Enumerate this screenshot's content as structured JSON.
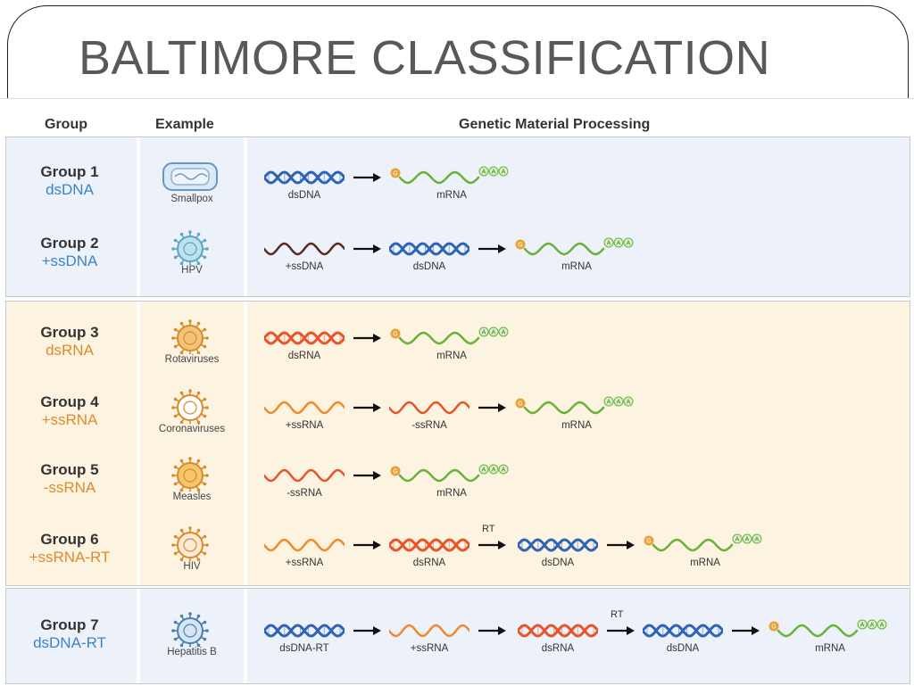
{
  "slide": {
    "title": "BALTIMORE CLASSIFICATION"
  },
  "headers": {
    "group": "Group",
    "example": "Example",
    "processing": "Genetic Material Processing"
  },
  "colors": {
    "dsdna": "#2e63b5",
    "ssdna": "#5a2a1e",
    "rna": "#e8542a",
    "ssrna": "#f08a2a",
    "mrna": "#67b337",
    "cap": "#e8a23a",
    "blue_text": "#3b84c6",
    "orange_text": "#e08a2b",
    "panel_blue": "#edf2fa",
    "panel_peach": "#fdf3e1"
  },
  "groups": [
    {
      "name": "Group 1",
      "type": "dsDNA",
      "type_color": "blue",
      "example": "Smallpox",
      "icon": "smallpox-virus-icon",
      "steps": [
        {
          "mol": "dsDNA",
          "kind": "ds",
          "color": "dsdna"
        },
        {
          "mol": "mRNA",
          "kind": "mrna"
        }
      ]
    },
    {
      "name": "Group 2",
      "type": "+ssDNA",
      "type_color": "blue",
      "example": "HPV",
      "icon": "hpv-virus-icon",
      "steps": [
        {
          "mol": "+ssDNA",
          "kind": "ss",
          "color": "ssdna"
        },
        {
          "mol": "dsDNA",
          "kind": "ds",
          "color": "dsdna"
        },
        {
          "mol": "mRNA",
          "kind": "mrna"
        }
      ]
    },
    {
      "name": "Group 3",
      "type": "dsRNA",
      "type_color": "orange",
      "example": "Rotaviruses",
      "icon": "rotavirus-icon",
      "steps": [
        {
          "mol": "dsRNA",
          "kind": "ds",
          "color": "rna"
        },
        {
          "mol": "mRNA",
          "kind": "mrna"
        }
      ]
    },
    {
      "name": "Group 4",
      "type": "+ssRNA",
      "type_color": "orange",
      "example": "Coronaviruses",
      "icon": "coronavirus-icon",
      "steps": [
        {
          "mol": "+ssRNA",
          "kind": "ss",
          "color": "ssrna"
        },
        {
          "mol": "-ssRNA",
          "kind": "ss",
          "color": "rna"
        },
        {
          "mol": "mRNA",
          "kind": "mrna"
        }
      ]
    },
    {
      "name": "Group 5",
      "type": "-ssRNA",
      "type_color": "orange",
      "example": "Measles",
      "icon": "measles-virus-icon",
      "steps": [
        {
          "mol": "-ssRNA",
          "kind": "ss",
          "color": "rna"
        },
        {
          "mol": "mRNA",
          "kind": "mrna"
        }
      ]
    },
    {
      "name": "Group 6",
      "type": "+ssRNA-RT",
      "type_color": "orange",
      "example": "HIV",
      "icon": "hiv-icon",
      "steps": [
        {
          "mol": "+ssRNA",
          "kind": "ss",
          "color": "ssrna"
        },
        {
          "mol": "dsRNA",
          "kind": "ds",
          "color": "rna"
        },
        {
          "mol": "dsDNA",
          "kind": "ds",
          "color": "dsdna",
          "rt": "RT"
        },
        {
          "mol": "mRNA",
          "kind": "mrna"
        }
      ]
    },
    {
      "name": "Group 7",
      "type": "dsDNA-RT",
      "type_color": "blue",
      "example": "Hepatitis B",
      "icon": "hepatitis-b-icon",
      "steps": [
        {
          "mol": "dsDNA-RT",
          "kind": "ds",
          "color": "dsdna"
        },
        {
          "mol": "+ssRNA",
          "kind": "ss",
          "color": "ssrna"
        },
        {
          "mol": "dsRNA",
          "kind": "ds",
          "color": "rna"
        },
        {
          "mol": "dsDNA",
          "kind": "ds",
          "color": "dsdna",
          "rt": "RT"
        },
        {
          "mol": "mRNA",
          "kind": "mrna"
        }
      ]
    }
  ],
  "mrna_tail": [
    "A",
    "A",
    "A"
  ],
  "cap_letter": "G"
}
